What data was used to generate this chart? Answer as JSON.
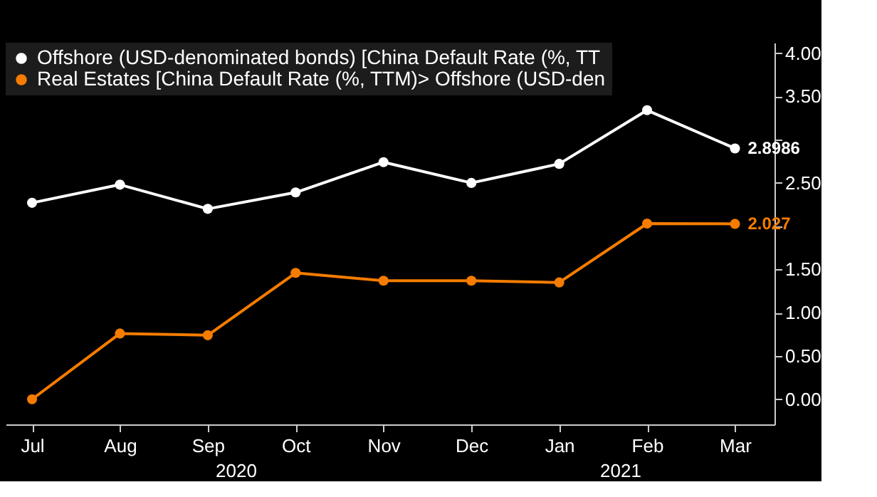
{
  "chart_data": {
    "type": "line",
    "categories": [
      "Jul",
      "Aug",
      "Sep",
      "Oct",
      "Nov",
      "Dec",
      "Jan",
      "Feb",
      "Mar"
    ],
    "series": [
      {
        "name": "Offshore (USD-denominated bonds) [China Default Rate (%, TT",
        "color": "#ffffff",
        "values": [
          2.27,
          2.48,
          2.2,
          2.39,
          2.74,
          2.5,
          2.72,
          3.34,
          2.8986
        ],
        "value_labels": [
          null,
          null,
          null,
          null,
          null,
          null,
          null,
          null,
          "2.8986"
        ]
      },
      {
        "name": "Real Estates [China Default Rate (%, TTM)> Offshore (USD-den",
        "color": "#f57c00",
        "values": [
          0.0,
          0.76,
          0.74,
          1.46,
          1.37,
          1.37,
          1.35,
          2.03,
          2.027
        ],
        "value_labels": [
          null,
          null,
          null,
          null,
          null,
          null,
          null,
          null,
          "2.027"
        ]
      }
    ],
    "ylim": [
      -0.29,
      4.12
    ],
    "yticks": [
      {
        "value": 0,
        "label": "0.00"
      },
      {
        "value": 0.5,
        "label": "0.50"
      },
      {
        "value": 1,
        "label": "1.00"
      },
      {
        "value": 1.5,
        "label": "1.50"
      },
      {
        "value": 2,
        "label": null
      },
      {
        "value": 2.5,
        "label": "2.50"
      },
      {
        "value": 3,
        "label": null
      },
      {
        "value": 3.5,
        "label": "3.50"
      },
      {
        "value": 4,
        "label": "4.00"
      }
    ],
    "annotations": [
      "2020",
      "2021"
    ],
    "legend": "top left",
    "marker": "circle",
    "line_style": "solid",
    "grid": false
  }
}
